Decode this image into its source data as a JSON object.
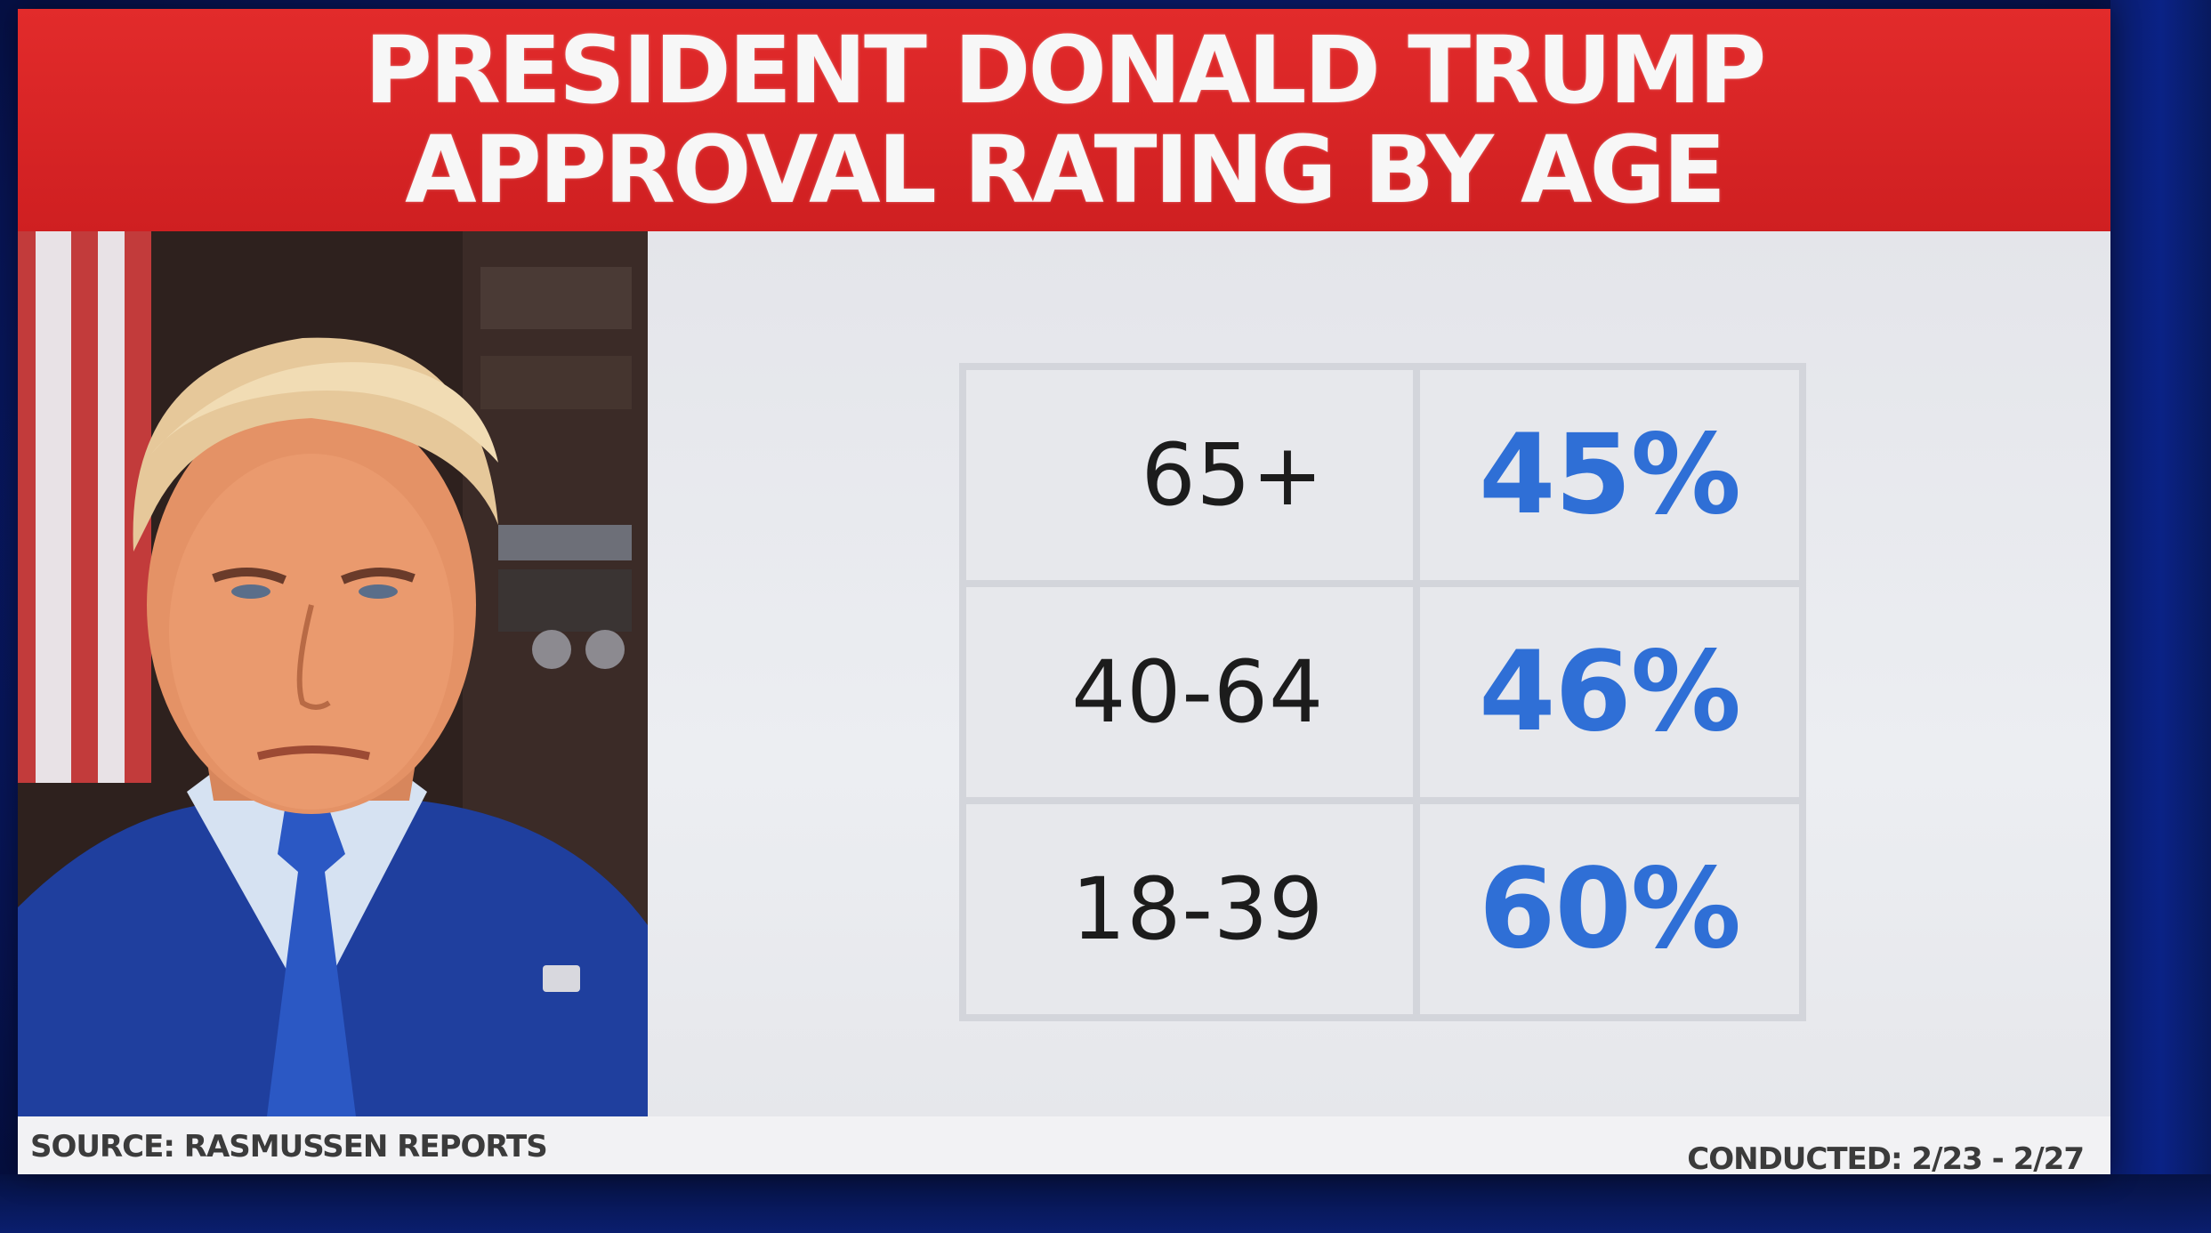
{
  "chart_data": {
    "type": "table",
    "title_lines": [
      "PRESIDENT DONALD TRUMP",
      "APPROVAL RATING BY AGE"
    ],
    "rows": [
      {
        "age": "65+",
        "value_label": "45%",
        "value": 45
      },
      {
        "age": "40-64",
        "value_label": "46%",
        "value_label_alt": "",
        "value": 46
      },
      {
        "age": "18-39",
        "value_label": "60%",
        "value": 60
      }
    ]
  },
  "footer": {
    "source": "SOURCE: RASMUSSEN REPORTS",
    "conducted": "CONDUCTED: 2/23 - 2/27"
  },
  "colors": {
    "banner": "#d9252a",
    "value_text": "#2f6fd6",
    "panel": "#eceef2",
    "background": "#0a1f7a"
  }
}
